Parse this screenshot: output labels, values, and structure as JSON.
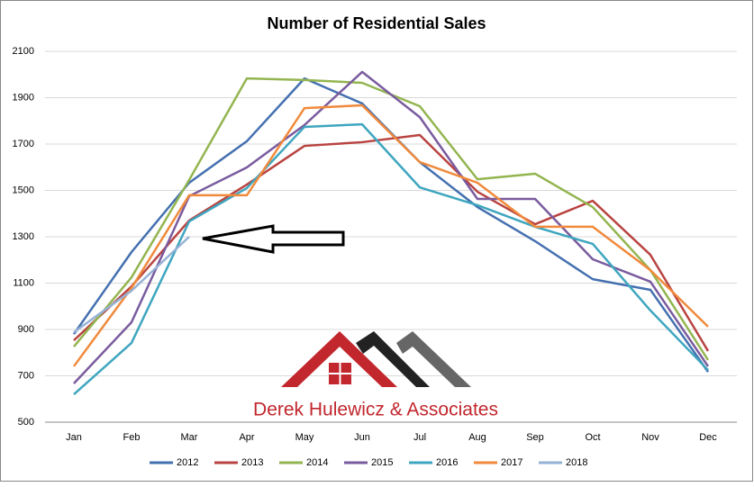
{
  "chart_data": {
    "type": "line",
    "title": "Number of Residential Sales",
    "categories": [
      "Jan",
      "Feb",
      "Mar",
      "Apr",
      "May",
      "Jun",
      "Jul",
      "Aug",
      "Sep",
      "Oct",
      "Nov",
      "Dec"
    ],
    "series": [
      {
        "name": "2012",
        "color": "#4470b0",
        "values": [
          880,
          1234,
          1533,
          1712,
          1983,
          1875,
          1622,
          1428,
          1281,
          1117,
          1071,
          717
        ]
      },
      {
        "name": "2013",
        "color": "#b94441",
        "values": [
          853,
          1086,
          1370,
          1525,
          1692,
          1708,
          1739,
          1494,
          1354,
          1455,
          1222,
          807
        ]
      },
      {
        "name": "2014",
        "color": "#93b550",
        "values": [
          826,
          1125,
          1545,
          1983,
          1976,
          1964,
          1863,
          1548,
          1572,
          1428,
          1156,
          768
        ]
      },
      {
        "name": "2015",
        "color": "#7a5b9e",
        "values": [
          667,
          931,
          1475,
          1599,
          1782,
          2011,
          1816,
          1463,
          1463,
          1203,
          1106,
          741
        ]
      },
      {
        "name": "2016",
        "color": "#3fa6bf",
        "values": [
          620,
          842,
          1366,
          1510,
          1774,
          1785,
          1513,
          1436,
          1343,
          1269,
          982,
          725
        ]
      },
      {
        "name": "2017",
        "color": "#f08a3c",
        "values": [
          741,
          1079,
          1479,
          1479,
          1855,
          1867,
          1622,
          1533,
          1343,
          1343,
          1156,
          912
        ]
      },
      {
        "name": "2018",
        "color": "#96b1d6",
        "values": [
          888,
          1067,
          1300,
          null,
          null,
          null,
          null,
          null,
          null,
          null,
          null,
          null
        ]
      }
    ],
    "ylim": [
      500,
      2100
    ],
    "yticks": [
      500,
      700,
      900,
      1100,
      1300,
      1500,
      1700,
      1900,
      2100
    ],
    "grid": true,
    "logo_text": "Derek Hulewicz & Associates"
  }
}
